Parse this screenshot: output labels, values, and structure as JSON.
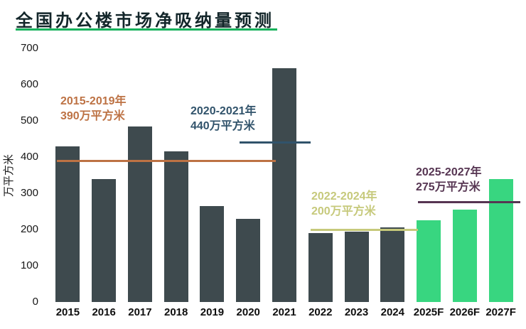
{
  "chart_data": {
    "type": "bar",
    "title": "全国办公楼市场净吸纳量预测",
    "ylabel": "万平方米",
    "xlabel": "",
    "ylim": [
      0,
      700
    ],
    "yticks": [
      0,
      100,
      200,
      300,
      400,
      500,
      600,
      700
    ],
    "grid": false,
    "legend": false,
    "categories": [
      "2015",
      "2016",
      "2017",
      "2018",
      "2019",
      "2020",
      "2021",
      "2022",
      "2023",
      "2024",
      "2025F",
      "2026F",
      "2027F"
    ],
    "values": [
      430,
      340,
      485,
      415,
      265,
      230,
      645,
      190,
      195,
      205,
      225,
      255,
      340
    ],
    "colors": {
      "historical_bar": "#3e4a4e",
      "forecast_bar": "#38d680",
      "title_underline": "#17b25b"
    },
    "annotations": [
      {
        "period": "2015-2019年",
        "value_label": "390万平方米",
        "value": 390,
        "span": [
          "2015",
          "2019"
        ],
        "color": "#bd7244"
      },
      {
        "period": "2020-2021年",
        "value_label": "440万平方米",
        "value": 440,
        "span": [
          "2020",
          "2021"
        ],
        "color": "#31536b"
      },
      {
        "period": "2022-2024年",
        "value_label": "200万平方米",
        "value": 200,
        "span": [
          "2022",
          "2024"
        ],
        "color": "#c6c97b"
      },
      {
        "period": "2025-2027年",
        "value_label": "275万平方米",
        "value": 275,
        "span": [
          "2025F",
          "2027F"
        ],
        "color": "#563552"
      }
    ]
  }
}
